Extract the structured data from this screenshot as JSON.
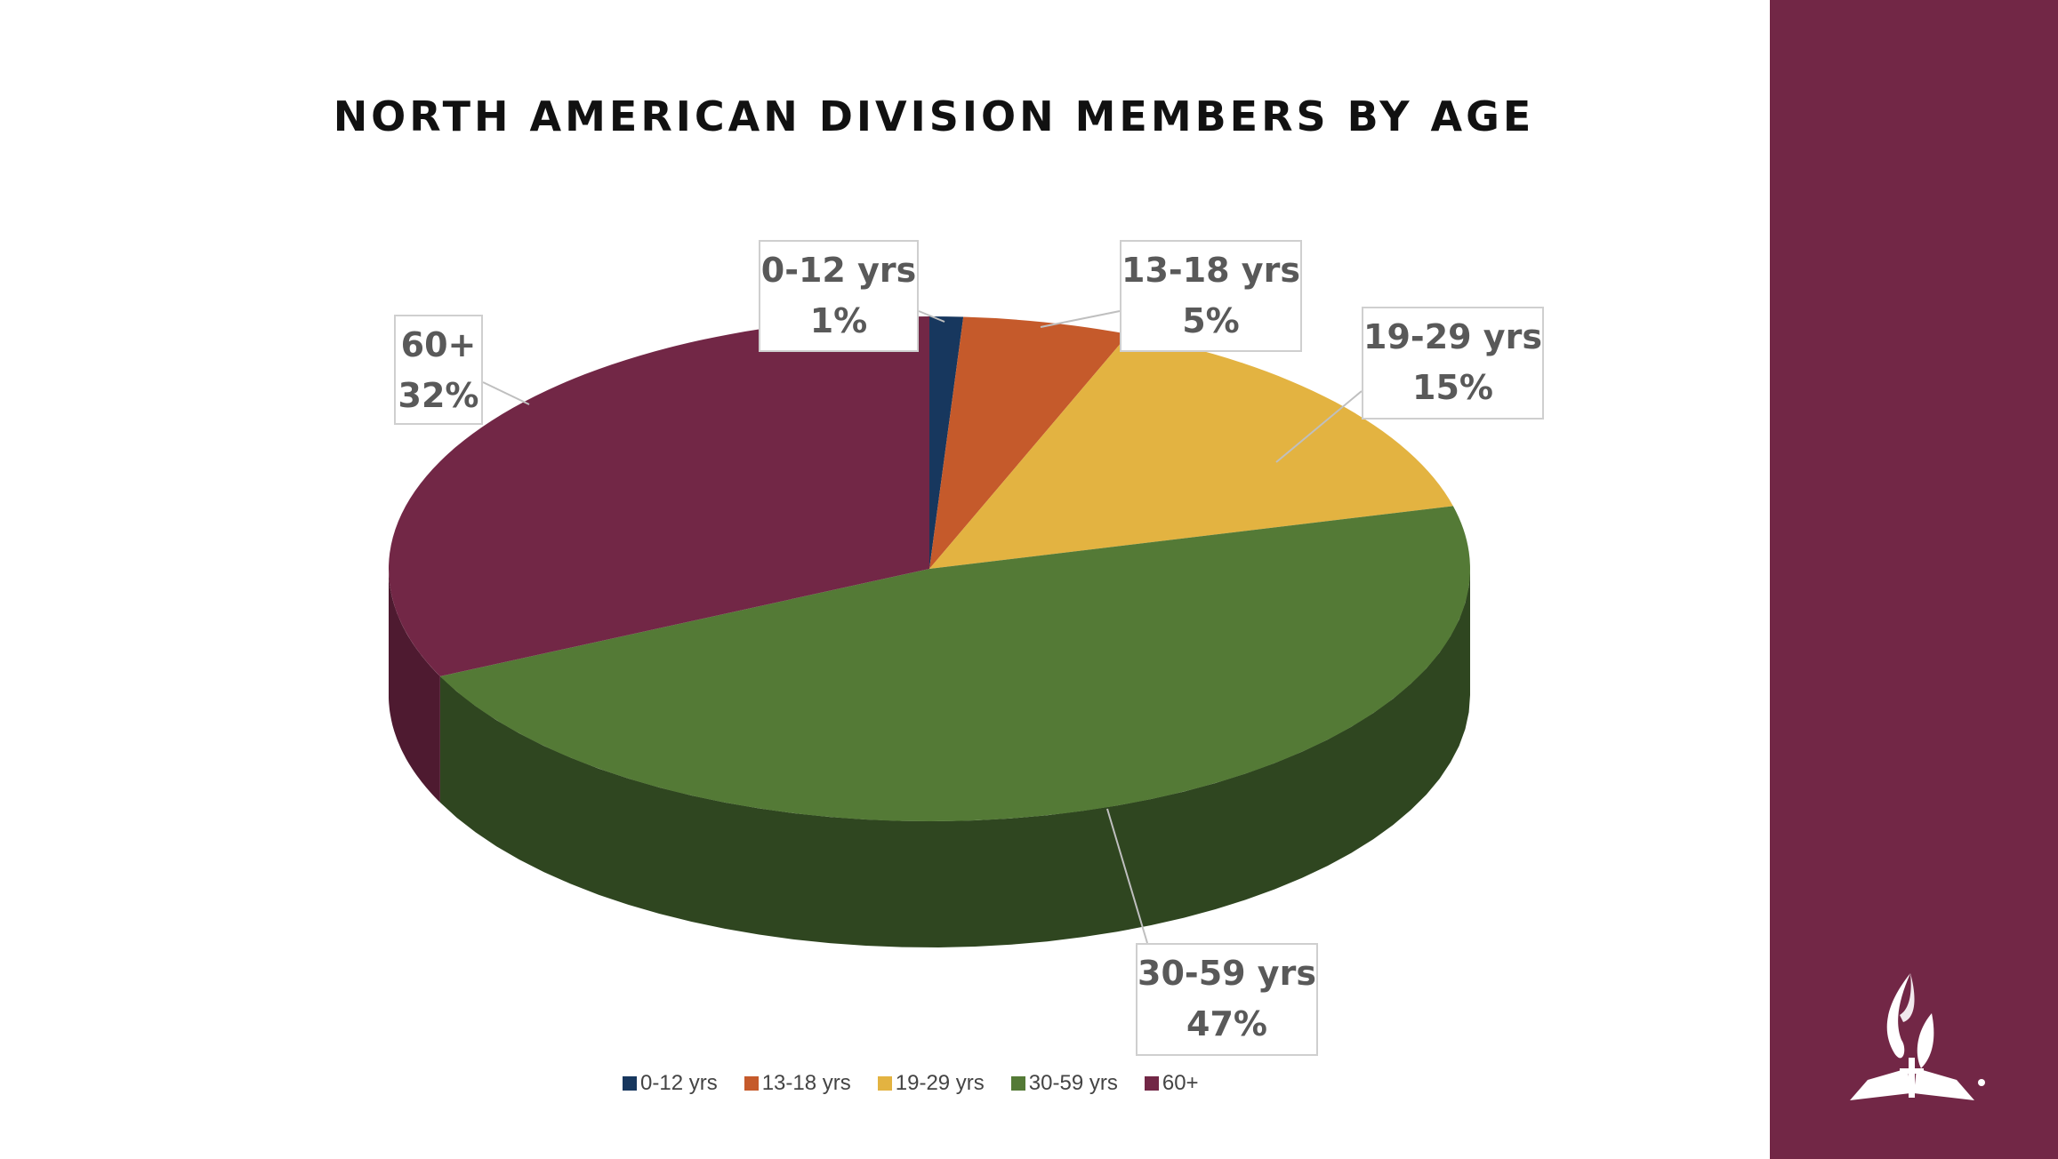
{
  "chart_data": {
    "type": "pie",
    "title": "NORTH AMERICAN DIVISION MEMBERS BY AGE",
    "categories": [
      "0-12 yrs",
      "13-18 yrs",
      "19-29 yrs",
      "30-59 yrs",
      "60+"
    ],
    "values": [
      1,
      5,
      15,
      47,
      32
    ],
    "value_labels": [
      "1%",
      "5%",
      "15%",
      "47%",
      "32%"
    ],
    "colors": [
      "#17375e",
      "#c55a2b",
      "#e3b341",
      "#547a36",
      "#722746"
    ],
    "side_colors": [
      "#0e2440",
      "#8a3e1d",
      "#a07d2c",
      "#2f4620",
      "#4e1a30"
    ],
    "legend_position": "bottom",
    "style": "3d"
  },
  "theme": {
    "panel_color": "#722746"
  }
}
